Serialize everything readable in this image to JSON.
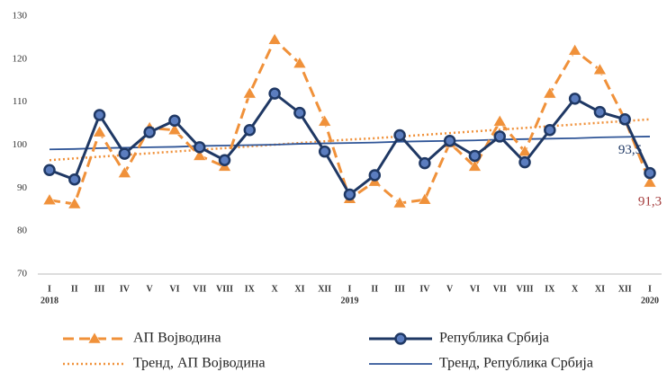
{
  "chart_data": {
    "type": "line",
    "categories": [
      "I",
      "II",
      "III",
      "IV",
      "V",
      "VI",
      "VII",
      "VIII",
      "IX",
      "X",
      "XI",
      "XII",
      "I",
      "II",
      "III",
      "IV",
      "V",
      "VI",
      "VII",
      "VIII",
      "IX",
      "X",
      "XI",
      "XII",
      "I"
    ],
    "years": [
      "2018",
      null,
      null,
      null,
      null,
      null,
      null,
      null,
      null,
      null,
      null,
      null,
      "2019",
      null,
      null,
      null,
      null,
      null,
      null,
      null,
      null,
      null,
      null,
      null,
      "2020"
    ],
    "ylim": [
      70,
      130
    ],
    "yticks": [
      70,
      80,
      90,
      100,
      110,
      120,
      130
    ],
    "grid": false,
    "series": [
      {
        "name": "АП Војводина",
        "color": "#f0913a",
        "dash": "dashed",
        "marker": "triangle",
        "values": [
          87.2,
          86.3,
          103,
          93.5,
          104,
          103.5,
          97.5,
          95,
          112,
          124.5,
          119,
          105.5,
          87.5,
          91.5,
          86.5,
          87.3,
          100.5,
          95,
          105.5,
          98.5,
          112,
          122,
          117.5,
          106,
          91.3
        ],
        "value_labels": [
          null,
          null,
          null,
          null,
          null,
          null,
          null,
          null,
          null,
          null,
          null,
          null,
          null,
          null,
          null,
          null,
          null,
          null,
          null,
          null,
          null,
          null,
          null,
          null,
          "91,3"
        ],
        "label_color": "#a33a3a"
      },
      {
        "name": "Република Србија",
        "color": "#1f3864",
        "dash": "solid",
        "marker": "circle",
        "values": [
          94.2,
          92,
          107,
          98,
          103,
          105.7,
          99.5,
          96.5,
          103.5,
          112,
          107.5,
          98.5,
          88.5,
          93,
          102.3,
          95.8,
          101,
          97.5,
          102,
          96,
          103.5,
          110.8,
          107.7,
          106,
          93.5
        ],
        "value_labels": [
          null,
          null,
          null,
          null,
          null,
          null,
          null,
          null,
          null,
          null,
          null,
          null,
          null,
          null,
          null,
          null,
          null,
          null,
          null,
          null,
          null,
          null,
          null,
          null,
          "93,5"
        ],
        "label_color": "#1f3864"
      },
      {
        "name": "Тренд, АП Војводина",
        "color": "#f0913a",
        "dash": "dotted",
        "marker": null,
        "values": [
          96.5,
          96.9,
          97.3,
          97.7,
          98.1,
          98.5,
          98.9,
          99.3,
          99.7,
          100.1,
          100.5,
          100.9,
          101.3,
          101.6,
          102.0,
          102.4,
          102.8,
          103.2,
          103.6,
          104.0,
          104.4,
          104.8,
          105.2,
          105.6,
          106.0
        ]
      },
      {
        "name": "Тренд, Република Србија",
        "color": "#2f5597",
        "dash": "solid",
        "marker": null,
        "values": [
          99.0,
          99.1,
          99.3,
          99.4,
          99.5,
          99.6,
          99.8,
          99.9,
          100.0,
          100.1,
          100.3,
          100.4,
          100.5,
          100.6,
          100.8,
          100.9,
          101.0,
          101.1,
          101.3,
          101.4,
          101.5,
          101.6,
          101.8,
          101.9,
          102.0
        ]
      }
    ]
  }
}
